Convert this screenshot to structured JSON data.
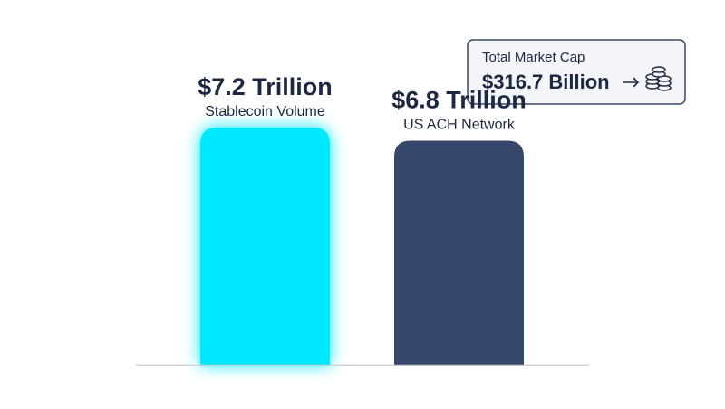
{
  "chart_data": {
    "type": "bar",
    "categories": [
      "Stablecoin Volume",
      "US ACH Network"
    ],
    "values": [
      7.2,
      6.8
    ],
    "value_labels": [
      "$7.2 Trillion",
      "$6.8 Trillion"
    ],
    "colors": [
      "#00e8ff",
      "#36466a"
    ],
    "annotation": {
      "title": "Total Market Cap",
      "value": "$316.7 Billion"
    }
  }
}
